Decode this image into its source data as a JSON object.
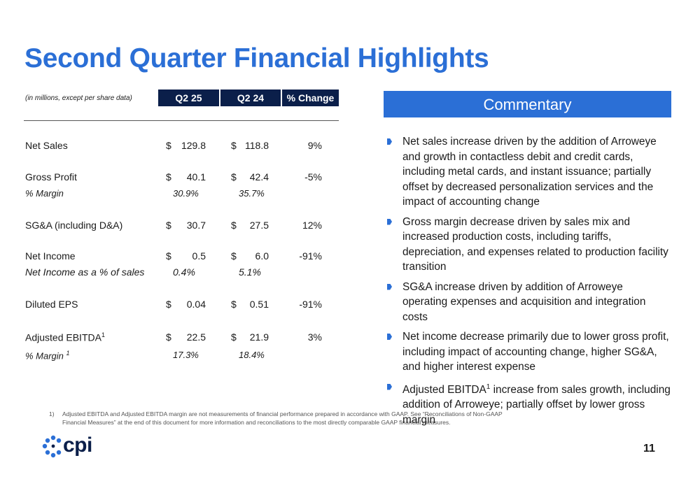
{
  "title": "Second Quarter Financial Highlights",
  "table": {
    "units_note": "(in millions, except per share data)",
    "columns": [
      "Q2 25",
      "Q2 24",
      "% Change"
    ],
    "rows": [
      {
        "label": "Net Sales",
        "cur": "$",
        "q2_25": "129.8",
        "q2_24": "118.8",
        "change": "9%"
      },
      {
        "label": "Gross Profit",
        "cur": "$",
        "q2_25": "40.1",
        "q2_24": "42.4",
        "change": "-5%",
        "sub_label": "% Margin",
        "sub_q2_25": "30.9%",
        "sub_q2_24": "35.7%"
      },
      {
        "label": "SG&A (including D&A)",
        "cur": "$",
        "q2_25": "30.7",
        "q2_24": "27.5",
        "change": "12%"
      },
      {
        "label": "Net Income",
        "cur": "$",
        "q2_25": "0.5",
        "q2_24": "6.0",
        "change": "-91%",
        "sub_label": "Net Income as a % of sales",
        "sub_q2_25": "0.4%",
        "sub_q2_24": "5.1%"
      },
      {
        "label": "Diluted EPS",
        "cur": "$",
        "q2_25": "0.04",
        "q2_24": "0.51",
        "change": "-91%"
      },
      {
        "label": "Adjusted EBITDA",
        "label_sup": "1",
        "cur": "$",
        "q2_25": "22.5",
        "q2_24": "21.9",
        "change": "3%",
        "sub_label": "% Margin ",
        "sub_label_sup": "1",
        "sub_q2_25": "17.3%",
        "sub_q2_24": "18.4%"
      }
    ]
  },
  "commentary": {
    "heading": "Commentary",
    "bullets": [
      {
        "text": "Net sales increase driven by the addition of Arroweye and growth in contactless debit and credit cards, including metal cards, and instant issuance; partially offset by decreased personalization services and the impact of accounting change"
      },
      {
        "text": "Gross margin decrease driven by sales mix and increased production costs, including tariffs, depreciation, and expenses related to production facility transition"
      },
      {
        "text": "SG&A increase driven by addition of Arroweye operating expenses and acquisition and integration costs"
      },
      {
        "text": "Net income decrease primarily due to lower gross profit, including impact of accounting change, higher SG&A, and higher interest expense"
      },
      {
        "pre": "Adjusted EBITDA",
        "sup": "1",
        "post": " increase from sales growth, including addition of Arroweye; partially offset by lower gross margin"
      }
    ]
  },
  "footnote": {
    "number": "1)",
    "text": "Adjusted EBITDA and Adjusted EBITDA margin are not measurements of financial performance prepared in accordance with GAAP. See “Reconciliations of Non-GAAP Financial Measures” at the end of this document for more information and reconciliations to the most directly comparable GAAP financial measures."
  },
  "logo": {
    "text": "cpi",
    "icon": "cpi-logo-icon",
    "color": "#2b6fd6"
  },
  "page_number": "11",
  "colors": {
    "accent": "#2b6fd6",
    "header_dark": "#0b1f4a"
  }
}
